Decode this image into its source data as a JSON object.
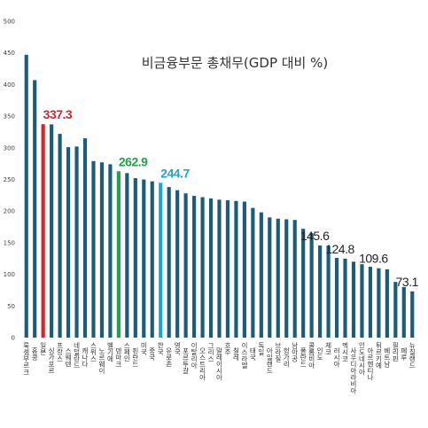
{
  "chart_data": {
    "type": "bar",
    "title": "비금융부문 총채무(GDP 대비 %)",
    "categories": [
      "룩셈부르크",
      "홍콩",
      "일본",
      "싱가포르",
      "프랑스",
      "스웨덴",
      "네덜란드",
      "캐나다",
      "스위스",
      "노르웨이",
      "벨기에",
      "덴마크",
      "스페인",
      "핀란드",
      "미국",
      "중국",
      "한국",
      "유로존",
      "영국",
      "포르투갈",
      "이탈리아",
      "오스트리아",
      "그리스",
      "말레이시아",
      "호주",
      "칠레",
      "이스라엘",
      "태국",
      "독일",
      "아일랜드",
      "브라질",
      "헝가리",
      "남아공",
      "폴란드",
      "콜롬비아",
      "인도",
      "체코",
      "러시아",
      "멕시코",
      "사우디아라비아",
      "인도네시아",
      "아르헨티나",
      "튀르키예",
      "베트남",
      "필리핀",
      "페루",
      "뉴질랜드"
    ],
    "values": [
      447,
      407,
      337.3,
      337,
      322,
      301,
      302,
      315,
      279,
      277,
      274,
      262.9,
      260,
      252,
      250,
      247,
      244.7,
      238,
      233,
      228,
      224,
      222,
      220,
      218,
      217,
      216,
      215,
      205,
      198,
      190,
      188,
      187,
      186,
      172,
      165,
      145.6,
      145,
      126,
      124.8,
      120,
      116,
      112,
      109.6,
      108,
      88,
      80,
      73.1
    ],
    "value_labels": [
      null,
      null,
      "337.3",
      null,
      null,
      null,
      null,
      null,
      null,
      null,
      null,
      "262.9",
      null,
      null,
      null,
      null,
      "244.7",
      null,
      null,
      null,
      null,
      null,
      null,
      null,
      null,
      null,
      null,
      null,
      null,
      null,
      null,
      null,
      null,
      null,
      null,
      "145.6",
      null,
      null,
      "124.8",
      null,
      null,
      null,
      "109.6",
      null,
      null,
      null,
      "73.1"
    ],
    "color": "#1d5c78",
    "colors": [
      null,
      null,
      "#d7262b",
      null,
      null,
      null,
      null,
      null,
      null,
      null,
      null,
      "#22a24a",
      null,
      null,
      null,
      null,
      "#1ca6cf",
      null,
      null,
      null,
      null,
      null,
      null,
      null,
      null,
      null,
      null,
      null,
      null,
      null,
      null,
      null,
      null,
      null,
      null,
      null,
      null,
      null,
      null,
      null,
      null,
      null,
      null,
      null,
      null,
      null,
      null
    ],
    "ylim": [
      0,
      500
    ],
    "yticks": [
      0,
      50,
      100,
      150,
      200,
      250,
      300,
      350,
      400,
      450,
      500
    ],
    "grid": false
  }
}
